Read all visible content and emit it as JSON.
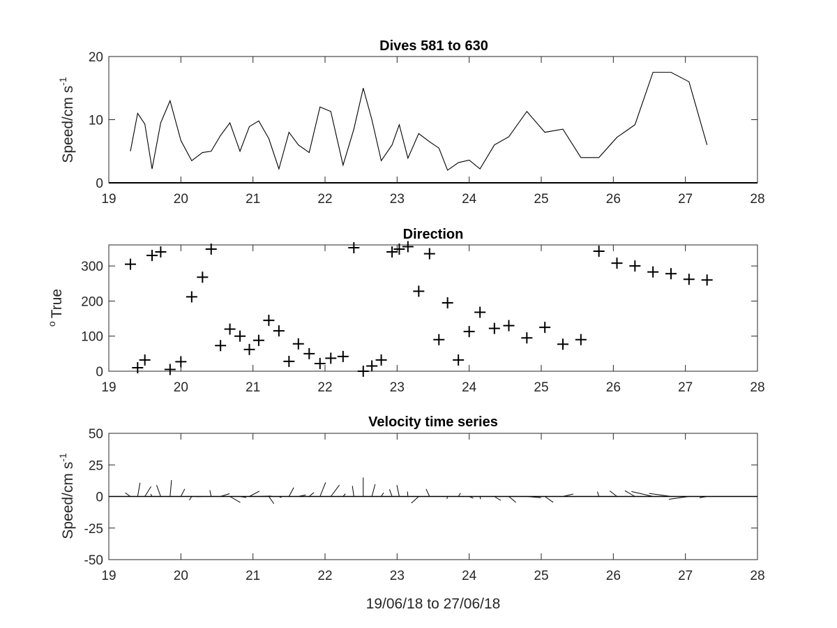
{
  "colors": {
    "line": "#000000",
    "axis": "#262626",
    "background": "#ffffff"
  },
  "chart_data": [
    {
      "type": "line",
      "title": "Dives 581 to 630",
      "ylabel": "Speed/cm s",
      "ylabel_sup": "-1",
      "xlabel": "",
      "xlim": [
        19,
        28
      ],
      "ylim": [
        0,
        20
      ],
      "xticks": [
        "19",
        "20",
        "21",
        "22",
        "23",
        "24",
        "25",
        "26",
        "27",
        "28"
      ],
      "yticks": [
        "0",
        "10",
        "20"
      ],
      "grid": false,
      "series": [
        {
          "x": [
            19.3,
            19.4,
            19.5,
            19.6,
            19.72,
            19.85,
            20.0,
            20.15,
            20.3,
            20.42,
            20.55,
            20.68,
            20.82,
            20.95,
            21.08,
            21.22,
            21.36,
            21.5,
            21.63,
            21.78,
            21.93,
            22.08,
            22.25,
            22.4,
            22.53,
            22.65,
            22.78,
            22.93,
            23.03,
            23.15,
            23.3,
            23.45,
            23.58,
            23.7,
            23.85,
            24.0,
            24.15,
            24.35,
            24.55,
            24.8,
            25.05,
            25.3,
            25.55,
            25.8,
            26.05,
            26.3,
            26.55,
            26.8,
            27.05,
            27.3
          ],
          "y": [
            5,
            11,
            9.3,
            2.2,
            9.5,
            13,
            6.7,
            3.5,
            4.8,
            5,
            7.5,
            9.5,
            5,
            8.9,
            9.8,
            7,
            2.2,
            8,
            6,
            4.8,
            12,
            11.3,
            2.8,
            8.5,
            15,
            10,
            3.5,
            6,
            9.2,
            3.9,
            7.8,
            6.5,
            5.5,
            2,
            3.2,
            3.6,
            2.2,
            6,
            7.3,
            11.3,
            8,
            8.5,
            4,
            4,
            7.2,
            9.2,
            17.5,
            17.5,
            16,
            6
          ]
        }
      ]
    },
    {
      "type": "scatter",
      "title": "Direction",
      "ylabel": "True",
      "ylabel_sup": "o",
      "xlabel": "",
      "xlim": [
        19,
        28
      ],
      "ylim": [
        0,
        360
      ],
      "xticks": [
        "19",
        "20",
        "21",
        "22",
        "23",
        "24",
        "25",
        "26",
        "27",
        "28"
      ],
      "yticks": [
        "0",
        "100",
        "200",
        "300"
      ],
      "grid": false,
      "marker": "+",
      "series": [
        {
          "x": [
            19.3,
            19.4,
            19.5,
            19.6,
            19.72,
            19.85,
            20.0,
            20.15,
            20.3,
            20.42,
            20.55,
            20.68,
            20.82,
            20.95,
            21.08,
            21.22,
            21.36,
            21.5,
            21.63,
            21.78,
            21.93,
            22.08,
            22.25,
            22.4,
            22.53,
            22.65,
            22.78,
            22.93,
            23.03,
            23.15,
            23.3,
            23.45,
            23.58,
            23.7,
            23.85,
            24.0,
            24.15,
            24.35,
            24.55,
            24.8,
            25.05,
            25.3,
            25.55,
            25.8,
            26.05,
            26.3,
            26.55,
            26.8,
            27.05,
            27.3
          ],
          "y": [
            305,
            10,
            32,
            330,
            340,
            5,
            27,
            212,
            268,
            348,
            73,
            120,
            100,
            62,
            88,
            145,
            115,
            28,
            78,
            50,
            22,
            37,
            42,
            352,
            0,
            15,
            32,
            340,
            348,
            355,
            228,
            335,
            90,
            195,
            32,
            113,
            168,
            122,
            130,
            95,
            125,
            77,
            90,
            342,
            308,
            300,
            283,
            278,
            262,
            260
          ]
        }
      ]
    },
    {
      "type": "quiver",
      "title": "Velocity time series",
      "ylabel": "Speed/cm s",
      "ylabel_sup": "-1",
      "xlabel": "19/06/18 to 27/06/18",
      "xlim": [
        19,
        28
      ],
      "ylim": [
        -50,
        50
      ],
      "xticks": [
        "19",
        "20",
        "21",
        "22",
        "23",
        "24",
        "25",
        "26",
        "27",
        "28"
      ],
      "yticks": [
        "-50",
        "-25",
        "0",
        "25",
        "50"
      ],
      "grid": false,
      "baseline": 0
    }
  ]
}
